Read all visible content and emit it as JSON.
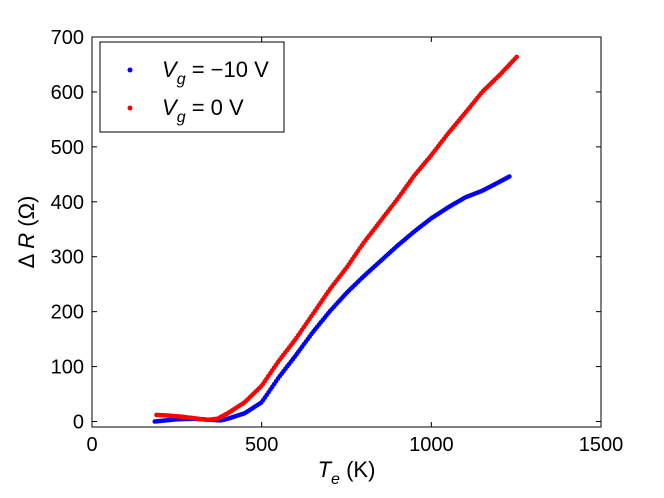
{
  "chart_data": {
    "type": "scatter",
    "title": "",
    "xlabel": {
      "symbol": "T",
      "subscript": "e",
      "unit": " (K)"
    },
    "ylabel": {
      "prefix": "Δ ",
      "symbol": "R",
      "unit": " (Ω)"
    },
    "xlim": [
      0,
      1500
    ],
    "ylim": [
      -10,
      700
    ],
    "xticks": [
      0,
      500,
      1000,
      1500
    ],
    "yticks": [
      0,
      100,
      200,
      300,
      400,
      500,
      600,
      700
    ],
    "grid": false,
    "legend_position": "top-left",
    "series": [
      {
        "name": {
          "symbol": "V",
          "subscript": "g",
          "rest": " = −10 V"
        },
        "color": "#0000ff",
        "x_range": [
          185,
          1230
        ],
        "x": [
          185,
          250,
          300,
          350,
          380,
          400,
          450,
          500,
          550,
          600,
          650,
          700,
          750,
          800,
          850,
          900,
          950,
          1000,
          1050,
          1100,
          1150,
          1200,
          1230
        ],
        "y": [
          0,
          4,
          5,
          3,
          2,
          5,
          15,
          35,
          80,
          120,
          162,
          200,
          234,
          264,
          292,
          320,
          346,
          370,
          390,
          408,
          420,
          436,
          446
        ]
      },
      {
        "name": {
          "symbol": "V",
          "subscript": "g",
          "rest": " = 0 V"
        },
        "color": "#ff0000",
        "x_range": [
          190,
          1255
        ],
        "x": [
          190,
          220,
          260,
          300,
          340,
          370,
          400,
          450,
          500,
          550,
          600,
          650,
          700,
          750,
          800,
          850,
          900,
          950,
          1000,
          1050,
          1100,
          1150,
          1200,
          1255
        ],
        "y": [
          12,
          11,
          9,
          6,
          3,
          5,
          15,
          35,
          65,
          110,
          150,
          195,
          240,
          280,
          325,
          365,
          405,
          448,
          485,
          525,
          562,
          600,
          630,
          666
        ]
      }
    ]
  }
}
